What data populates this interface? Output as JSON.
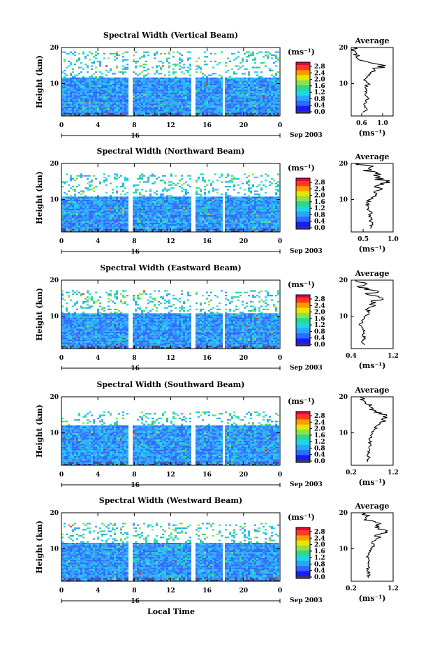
{
  "figure": {
    "date_label": "Sep 2003",
    "day_label": "16",
    "xlabel": "Local Time",
    "colorbar_unit": "(ms⁻¹)",
    "avg_title": "Average",
    "avg_xunit": "(ms⁻¹)",
    "height_label": "Height (km)",
    "colormap": [
      "#3b3b6e",
      "#1a1aff",
      "#2f6bff",
      "#2aa6ff",
      "#1fd6e6",
      "#2bd98a",
      "#8fe04a",
      "#e6e600",
      "#ff9a00",
      "#ff3b1f",
      "#e0004a"
    ]
  },
  "chart_data": [
    {
      "type": "heatmap",
      "title": "Spectral Width (Vertical Beam)",
      "xlim": [
        0,
        24
      ],
      "xticks": [
        "0",
        "4",
        "8",
        "12",
        "16",
        "20",
        "0"
      ],
      "ylim": [
        1,
        20
      ],
      "yticks": [
        "20",
        "10"
      ],
      "colorbar": {
        "range": [
          0.0,
          2.8
        ],
        "ticks": [
          "2.8",
          "2.4",
          "2.0",
          "1.6",
          "1.2",
          "0.8",
          "0.4",
          "0.0"
        ]
      },
      "gaps_hours": [
        [
          7.4,
          7.9
        ],
        [
          14.3,
          14.8
        ],
        [
          17.6,
          17.9
        ]
      ],
      "data_top_km": 19,
      "sparse_from_km": 11.5,
      "average": {
        "title": "Average",
        "xlim": [
          0.4,
          1.2
        ],
        "xticks": [
          "0.6",
          "1.0"
        ],
        "heights": [
          2,
          3,
          4,
          5,
          6,
          7,
          8,
          9,
          10,
          11,
          12,
          13,
          14,
          15,
          16,
          17,
          18,
          19,
          20
        ],
        "values": [
          0.62,
          0.7,
          0.65,
          0.68,
          0.72,
          0.66,
          0.7,
          0.66,
          0.74,
          0.64,
          0.7,
          0.76,
          0.84,
          1.06,
          0.72,
          0.52,
          0.44,
          0.48,
          0.44
        ]
      }
    },
    {
      "type": "heatmap",
      "title": "Spectral Width (Northward Beam)",
      "xlim": [
        0,
        24
      ],
      "xticks": [
        "0",
        "4",
        "8",
        "12",
        "16",
        "20",
        "0"
      ],
      "ylim": [
        1,
        20
      ],
      "yticks": [
        "20",
        "10"
      ],
      "colorbar": {
        "range": [
          0.0,
          2.8
        ],
        "ticks": [
          "2.8",
          "2.4",
          "2.0",
          "1.6",
          "1.2",
          "0.8",
          "0.4",
          "0.0"
        ]
      },
      "gaps_hours": [
        [
          7.4,
          7.9
        ],
        [
          14.3,
          14.8
        ],
        [
          17.6,
          17.9
        ]
      ],
      "data_top_km": 17,
      "sparse_from_km": 11.0,
      "average": {
        "title": "Average",
        "xlim": [
          0.3,
          1.0
        ],
        "xticks": [
          "0.5",
          "1.0"
        ],
        "heights": [
          2,
          3,
          4,
          5,
          6,
          7,
          8,
          9,
          10,
          11,
          12,
          13,
          14,
          15,
          16,
          17,
          18,
          19,
          20
        ],
        "values": [
          0.62,
          0.66,
          0.6,
          0.64,
          0.62,
          0.6,
          0.58,
          0.56,
          0.6,
          0.72,
          0.68,
          0.82,
          0.76,
          0.88,
          0.7,
          0.8,
          0.5,
          0.62,
          0.45
        ]
      }
    },
    {
      "type": "heatmap",
      "title": "Spectral Width (Eastward Beam)",
      "xlim": [
        0,
        24
      ],
      "xticks": [
        "0",
        "4",
        "8",
        "12",
        "16",
        "20",
        "0"
      ],
      "ylim": [
        1,
        20
      ],
      "yticks": [
        "20",
        "10"
      ],
      "colorbar": {
        "range": [
          0.0,
          2.8
        ],
        "ticks": [
          "2.8",
          "2.4",
          "2.0",
          "1.6",
          "1.2",
          "0.8",
          "0.4",
          "0.0"
        ]
      },
      "gaps_hours": [
        [
          7.4,
          7.9
        ],
        [
          14.3,
          14.8
        ],
        [
          17.6,
          17.9
        ]
      ],
      "data_top_km": 17,
      "sparse_from_km": 11.0,
      "average": {
        "title": "Average",
        "xlim": [
          0.4,
          1.2
        ],
        "xticks": [
          "0.4",
          "1.2"
        ],
        "heights": [
          2,
          3,
          4,
          5,
          6,
          7,
          8,
          9,
          10,
          11,
          12,
          13,
          14,
          15,
          16,
          17,
          18,
          19,
          20
        ],
        "values": [
          0.66,
          0.6,
          0.64,
          0.62,
          0.66,
          0.6,
          0.58,
          0.62,
          0.66,
          0.74,
          0.7,
          0.86,
          0.78,
          1.0,
          0.72,
          0.9,
          0.55,
          0.7,
          0.5
        ]
      }
    },
    {
      "type": "heatmap",
      "title": "Spectral Width (Southward Beam)",
      "xlim": [
        0,
        24
      ],
      "xticks": [
        "0",
        "4",
        "8",
        "12",
        "16",
        "20",
        "0"
      ],
      "ylim": [
        1,
        20
      ],
      "yticks": [
        "20",
        "10"
      ],
      "colorbar": {
        "range": [
          0.0,
          2.8
        ],
        "ticks": [
          "2.8",
          "2.4",
          "2.0",
          "1.6",
          "1.2",
          "0.8",
          "0.4",
          "0.0"
        ]
      },
      "gaps_hours": [
        [
          7.4,
          7.9
        ],
        [
          14.3,
          14.8
        ],
        [
          17.6,
          17.9
        ]
      ],
      "data_top_km": 16,
      "sparse_from_km": 12.0,
      "average": {
        "title": "Average",
        "xlim": [
          0.2,
          1.2
        ],
        "xticks": [
          "0.2",
          "1.2"
        ],
        "heights": [
          2,
          3,
          4,
          5,
          6,
          7,
          8,
          9,
          10,
          11,
          12,
          13,
          14,
          15,
          16,
          17,
          18,
          19,
          20
        ],
        "values": [
          0.58,
          0.62,
          0.6,
          0.64,
          0.62,
          0.66,
          0.64,
          0.68,
          0.7,
          0.76,
          0.82,
          0.9,
          0.96,
          1.04,
          0.8,
          0.7,
          0.56,
          0.5,
          0.42
        ]
      }
    },
    {
      "type": "heatmap",
      "title": "Spectral Width (Westward Beam)",
      "xlim": [
        0,
        24
      ],
      "xticks": [
        "0",
        "4",
        "8",
        "12",
        "16",
        "20",
        "0"
      ],
      "ylim": [
        1,
        20
      ],
      "yticks": [
        "20",
        "10"
      ],
      "colorbar": {
        "range": [
          0.0,
          2.8
        ],
        "ticks": [
          "2.8",
          "2.4",
          "2.0",
          "1.6",
          "1.2",
          "0.8",
          "0.4",
          "0.0"
        ]
      },
      "gaps_hours": [
        [
          7.4,
          7.9
        ],
        [
          14.3,
          14.8
        ],
        [
          17.6,
          17.9
        ]
      ],
      "data_top_km": 17,
      "sparse_from_km": 11.5,
      "average": {
        "title": "Average",
        "xlim": [
          0.2,
          1.2
        ],
        "xticks": [
          "0.2",
          "1.2"
        ],
        "heights": [
          2,
          3,
          4,
          5,
          6,
          7,
          8,
          9,
          10,
          11,
          12,
          13,
          14,
          15,
          16,
          17,
          18,
          19,
          20
        ],
        "values": [
          0.6,
          0.64,
          0.58,
          0.62,
          0.6,
          0.62,
          0.6,
          0.64,
          0.66,
          0.74,
          0.7,
          0.84,
          0.9,
          1.06,
          0.76,
          0.92,
          0.5,
          0.58,
          0.44
        ]
      }
    }
  ]
}
